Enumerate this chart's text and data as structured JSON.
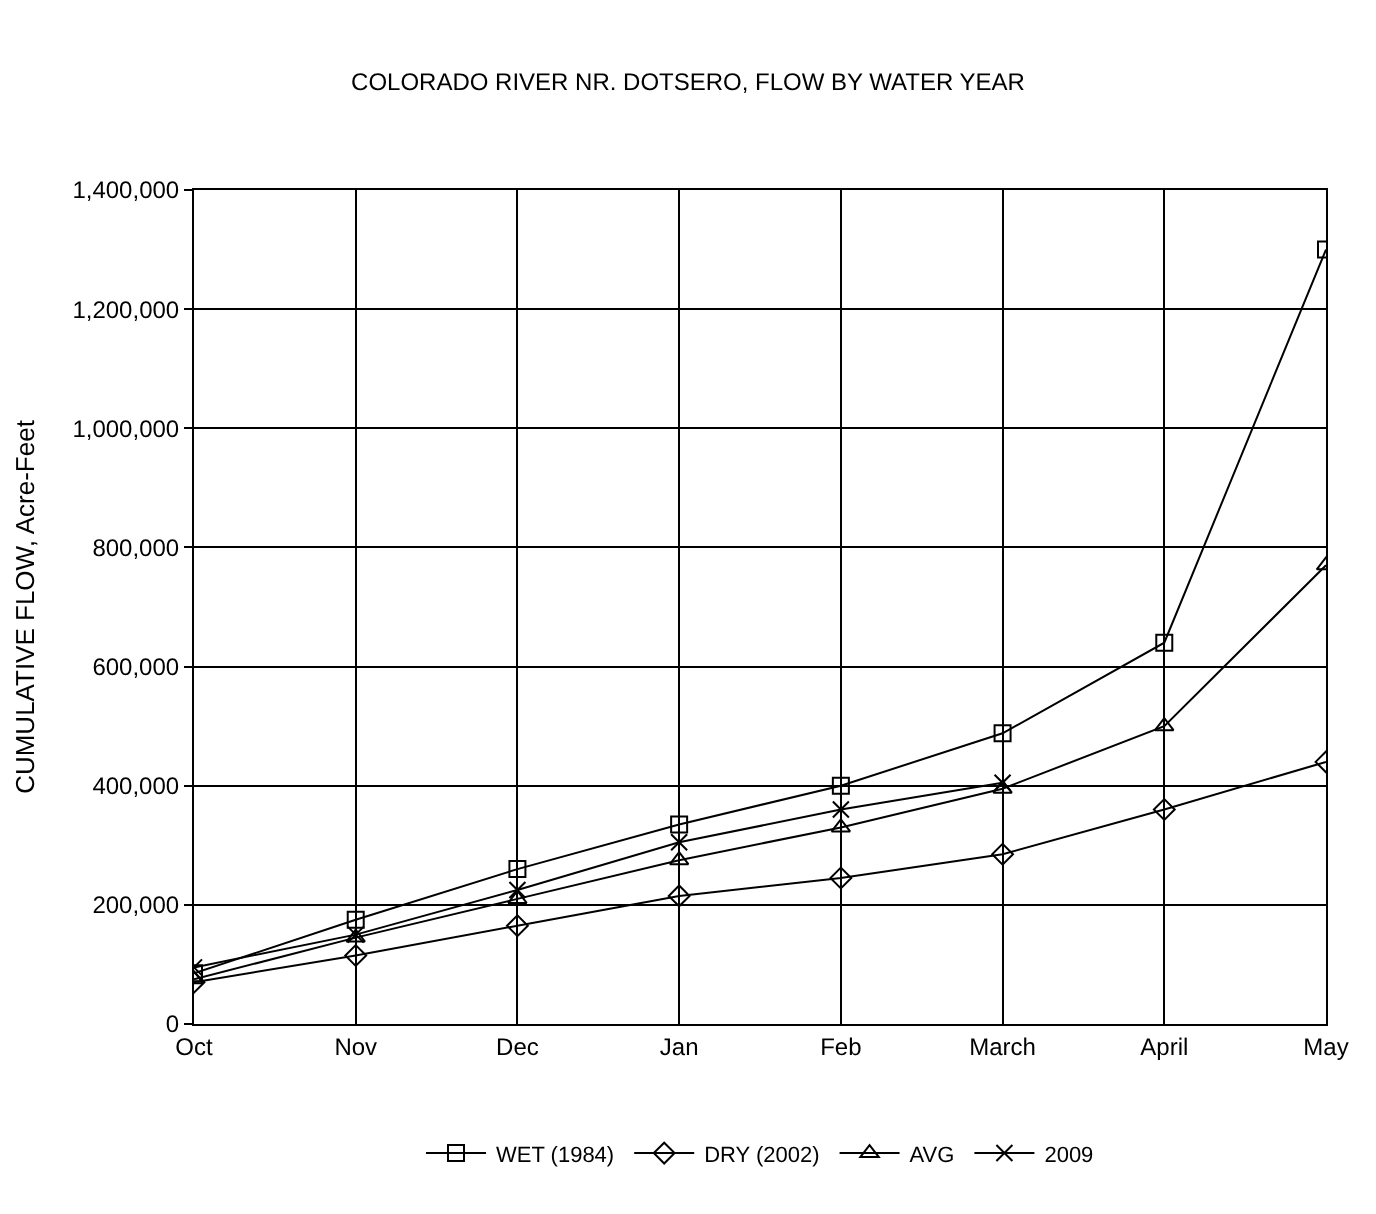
{
  "chart_data": {
    "type": "line",
    "title": "COLORADO RIVER NR. DOTSERO, FLOW BY WATER YEAR",
    "ylabel": "CUMULATIVE FLOW, Acre-Feet",
    "categories": [
      "Oct",
      "Nov",
      "Dec",
      "Jan",
      "Feb",
      "March",
      "April",
      "May"
    ],
    "series": [
      {
        "name": "WET (1984)",
        "color": "#000000",
        "marker": "square",
        "values": [
          85000,
          175000,
          260000,
          335000,
          400000,
          488000,
          640000,
          1300000
        ]
      },
      {
        "name": "DRY (2002)",
        "color": "#000000",
        "marker": "diamond",
        "values": [
          70000,
          115000,
          165000,
          215000,
          245000,
          285000,
          360000,
          440000
        ]
      },
      {
        "name": "AVG",
        "color": "#000000",
        "marker": "triangle",
        "values": [
          75000,
          145000,
          210000,
          275000,
          330000,
          395000,
          500000,
          770000
        ]
      },
      {
        "name": "2009",
        "color": "#000000",
        "marker": "cross",
        "values": [
          95000,
          150000,
          225000,
          305000,
          360000,
          405000,
          null,
          null
        ]
      }
    ],
    "ylim": [
      0,
      1400000
    ],
    "yticks": [
      {
        "value": 0,
        "label": "0"
      },
      {
        "value": 200000,
        "label": "200,000"
      },
      {
        "value": 400000,
        "label": "400,000"
      },
      {
        "value": 600000,
        "label": "600,000"
      },
      {
        "value": 800000,
        "label": "800,000"
      },
      {
        "value": 1000000,
        "label": "1,000,000"
      },
      {
        "value": 1200000,
        "label": "1,200,000"
      },
      {
        "value": 1400000,
        "label": "1,400,000"
      }
    ],
    "grid": true,
    "legend": "bottom",
    "line_style": "solid"
  }
}
